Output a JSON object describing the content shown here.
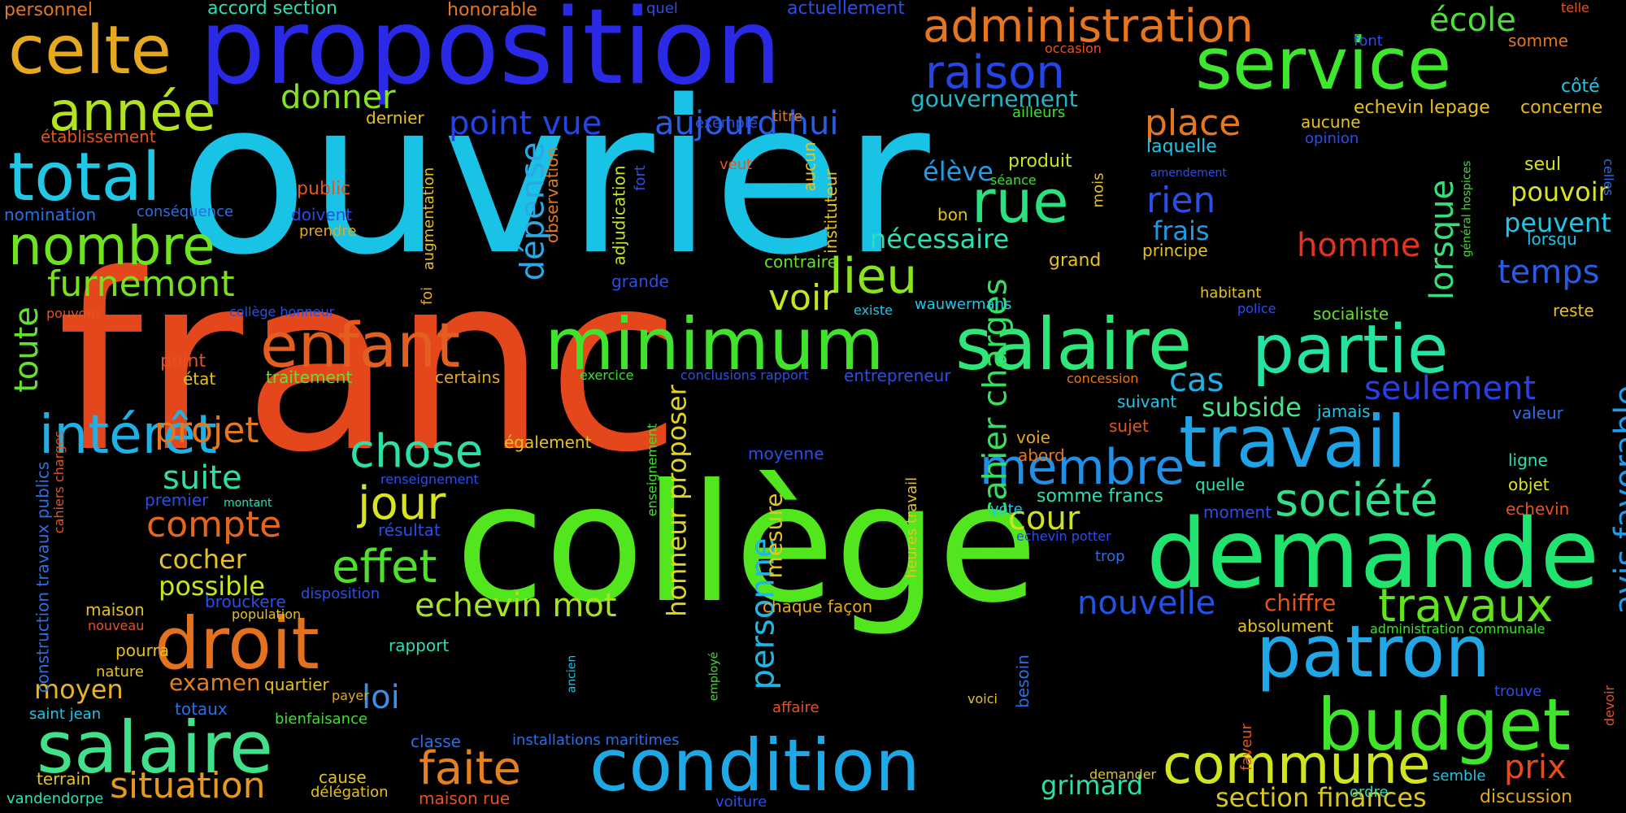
{
  "words": [
    {
      "text": "ouvrier",
      "color": "#18c3e6"
    },
    {
      "text": "franc",
      "color": "#e4471c"
    },
    {
      "text": "collège",
      "color": "#52e61f"
    },
    {
      "text": "proposition",
      "color": "#2a29e6"
    },
    {
      "text": "service",
      "color": "#3ee62d"
    },
    {
      "text": "condition",
      "color": "#1fa8e6"
    },
    {
      "text": "demande",
      "color": "#21e36f"
    },
    {
      "text": "salaire",
      "color": "#41e08a"
    },
    {
      "text": "salaire",
      "color": "#2fe67a"
    },
    {
      "text": "minimum",
      "color": "#40e22e"
    },
    {
      "text": "enfant",
      "color": "#e45f1f"
    },
    {
      "text": "partie",
      "color": "#26e3a0"
    },
    {
      "text": "travail",
      "color": "#1fa2e6"
    },
    {
      "text": "patron",
      "color": "#22a7e6"
    },
    {
      "text": "budget",
      "color": "#3ee52a"
    },
    {
      "text": "droit",
      "color": "#e5711f"
    },
    {
      "text": "celte",
      "color": "#e5a81f"
    },
    {
      "text": "total",
      "color": "#21c8e6"
    },
    {
      "text": "administration",
      "color": "#e5761f"
    },
    {
      "text": "année",
      "color": "#b2e31f"
    },
    {
      "text": "nombre",
      "color": "#6ee31f"
    },
    {
      "text": "rue",
      "color": "#2be07e"
    },
    {
      "text": "raison",
      "color": "#2546e6"
    },
    {
      "text": "commune",
      "color": "#d0e51f"
    },
    {
      "text": "société",
      "color": "#32e08b"
    },
    {
      "text": "travaux",
      "color": "#63e21f"
    },
    {
      "text": "intérêt",
      "color": "#1fb0e6"
    },
    {
      "text": "membre",
      "color": "#1f90e6"
    },
    {
      "text": "chose",
      "color": "#2ee0a8"
    },
    {
      "text": "jour",
      "color": "#d9e31f"
    },
    {
      "text": "effet",
      "color": "#4ee02b"
    },
    {
      "text": "faite",
      "color": "#e5801f"
    },
    {
      "text": "lieu",
      "color": "#8ae31f"
    },
    {
      "text": "furnemont",
      "color": "#78e01f"
    },
    {
      "text": "école",
      "color": "#4ce036"
    },
    {
      "text": "situation",
      "color": "#e59a1f"
    },
    {
      "text": "projet",
      "color": "#e5781f"
    },
    {
      "text": "aujourd hui",
      "color": "#2a5be6"
    },
    {
      "text": "point vue",
      "color": "#2444e6"
    },
    {
      "text": "donner",
      "color": "#86e31f"
    },
    {
      "text": "place",
      "color": "#e5781f"
    },
    {
      "text": "compte",
      "color": "#e5671f"
    },
    {
      "text": "suite",
      "color": "#2ee0a4"
    },
    {
      "text": "nouvelle",
      "color": "#2153e6"
    },
    {
      "text": "echevin mot",
      "color": "#a8e31f"
    },
    {
      "text": "cahier charges",
      "color": "#35e05f"
    },
    {
      "text": "personne",
      "color": "#1fb8e6"
    },
    {
      "text": "honneur proposer",
      "color": "#e0d41f"
    },
    {
      "text": "section finances",
      "color": "#d9c71f"
    },
    {
      "text": "homme",
      "color": "#e3341f"
    },
    {
      "text": "temps",
      "color": "#2a5be6"
    },
    {
      "text": "seulement",
      "color": "#2a3fe6"
    },
    {
      "text": "avis favorable",
      "color": "#1f9ae6"
    },
    {
      "text": "lorsque",
      "color": "#35e07c"
    },
    {
      "text": "dépense",
      "color": "#2aa9e6"
    },
    {
      "text": "cour",
      "color": "#d1e31f"
    },
    {
      "text": "loi",
      "color": "#3a8fe6"
    },
    {
      "text": "prix",
      "color": "#e54b1f"
    },
    {
      "text": "grimard",
      "color": "#2ee0a0"
    },
    {
      "text": "voir",
      "color": "#c8e31f"
    },
    {
      "text": "rien",
      "color": "#2a4fe6"
    },
    {
      "text": "frais",
      "color": "#1f9ae6"
    },
    {
      "text": "cas",
      "color": "#1fb0e6"
    },
    {
      "text": "subside",
      "color": "#4ae086"
    },
    {
      "text": "possible",
      "color": "#c8e31f"
    },
    {
      "text": "cocher",
      "color": "#e5c21f"
    },
    {
      "text": "examen",
      "color": "#e5801f"
    },
    {
      "text": "moyen",
      "color": "#e5b51f"
    },
    {
      "text": "toute",
      "color": "#64e02e"
    },
    {
      "text": "gouvernement",
      "color": "#1fb8c8"
    },
    {
      "text": "nécessaire",
      "color": "#2ae0b4"
    },
    {
      "text": "pouvoir",
      "color": "#d9e31f"
    },
    {
      "text": "peuvent",
      "color": "#21c5e6"
    },
    {
      "text": "élève",
      "color": "#2a9ae6"
    },
    {
      "text": "chiffre",
      "color": "#e5541f"
    },
    {
      "text": "mesure",
      "color": "#e5c21f"
    },
    {
      "text": "personnel",
      "color": "#e5781f"
    },
    {
      "text": "accord section",
      "color": "#2ae0b4"
    },
    {
      "text": "honorable",
      "color": "#e5781f"
    },
    {
      "text": "quel",
      "color": "#2a4fe6"
    },
    {
      "text": "actuellement",
      "color": "#2a4fe6"
    },
    {
      "text": "telle",
      "color": "#e5541f"
    },
    {
      "text": "occasion",
      "color": "#e5541f"
    },
    {
      "text": "somme",
      "color": "#e5781f"
    },
    {
      "text": "font",
      "color": "#2a4fe6"
    },
    {
      "text": "côté",
      "color": "#21c5e6"
    },
    {
      "text": "echevin lepage",
      "color": "#e5c21f"
    },
    {
      "text": "concerne",
      "color": "#e5b51f"
    },
    {
      "text": "aucune",
      "color": "#e5c21f"
    },
    {
      "text": "opinion",
      "color": "#2a4fe6"
    },
    {
      "text": "celles",
      "color": "#2a6fe6"
    },
    {
      "text": "général hospices",
      "color": "#3ee02e"
    },
    {
      "text": "établissement",
      "color": "#e5541f"
    },
    {
      "text": "ailleurs",
      "color": "#3ee02e"
    },
    {
      "text": "dernier",
      "color": "#e5c21f"
    },
    {
      "text": "exemple",
      "color": "#2a4fe6"
    },
    {
      "text": "titre",
      "color": "#e5781f"
    },
    {
      "text": "aucun",
      "color": "#e5c21f"
    },
    {
      "text": "instituteur",
      "color": "#e5c21f"
    },
    {
      "text": "laquelle",
      "color": "#21c5e6"
    },
    {
      "text": "produit",
      "color": "#c8e31f"
    },
    {
      "text": "amendement",
      "color": "#2a4fe6"
    },
    {
      "text": "séance",
      "color": "#3ee02e"
    },
    {
      "text": "mois",
      "color": "#e5c21f"
    },
    {
      "text": "seul",
      "color": "#d9e31f"
    },
    {
      "text": "lorsqu",
      "color": "#21c5e6"
    },
    {
      "text": "public",
      "color": "#e5541f"
    },
    {
      "text": "nomination",
      "color": "#2a6fe6"
    },
    {
      "text": "conséquence",
      "color": "#2a6fe6"
    },
    {
      "text": "doivent",
      "color": "#2a4fe6"
    },
    {
      "text": "prendre",
      "color": "#e5a81f"
    },
    {
      "text": "observation",
      "color": "#e5781f"
    },
    {
      "text": "adjudication",
      "color": "#c8e31f"
    },
    {
      "text": "fort",
      "color": "#2a4fe6"
    },
    {
      "text": "veut",
      "color": "#e5541f"
    },
    {
      "text": "augmentation",
      "color": "#e5c21f"
    },
    {
      "text": "foi",
      "color": "#e5a81f"
    },
    {
      "text": "bon",
      "color": "#e5c21f"
    },
    {
      "text": "contraire",
      "color": "#64e02e"
    },
    {
      "text": "grand",
      "color": "#e5c21f"
    },
    {
      "text": "principe",
      "color": "#e5c21f"
    },
    {
      "text": "habitant",
      "color": "#e5c21f"
    },
    {
      "text": "grande",
      "color": "#2a4fe6"
    },
    {
      "text": "pouvons",
      "color": "#e5541f"
    },
    {
      "text": "collège honneur",
      "color": "#2a4fe6"
    },
    {
      "text": "existe",
      "color": "#21c5e6"
    },
    {
      "text": "wauwermans",
      "color": "#21c5e6"
    },
    {
      "text": "police",
      "color": "#2a4fe6"
    },
    {
      "text": "socialiste",
      "color": "#64e02e"
    },
    {
      "text": "reste",
      "color": "#e5c21f"
    },
    {
      "text": "point",
      "color": "#e5541f"
    },
    {
      "text": "état",
      "color": "#e5c21f"
    },
    {
      "text": "traitement",
      "color": "#64e02e"
    },
    {
      "text": "certains",
      "color": "#e5a81f"
    },
    {
      "text": "exercice",
      "color": "#3ee02e"
    },
    {
      "text": "conclusions rapport",
      "color": "#2a4fe6"
    },
    {
      "text": "entrepreneur",
      "color": "#2a4fe6"
    },
    {
      "text": "concession",
      "color": "#e5781f"
    },
    {
      "text": "suivant",
      "color": "#21c5e6"
    },
    {
      "text": "jamais",
      "color": "#21c5e6"
    },
    {
      "text": "valeur",
      "color": "#2a6fe6"
    },
    {
      "text": "sujet",
      "color": "#e5541f"
    },
    {
      "text": "ligne",
      "color": "#2ae0b4"
    },
    {
      "text": "objet",
      "color": "#d9e31f"
    },
    {
      "text": "echevin",
      "color": "#e5541f"
    },
    {
      "text": "également",
      "color": "#e5c21f"
    },
    {
      "text": "moyenne",
      "color": "#2a4fe6"
    },
    {
      "text": "renseignement",
      "color": "#2a4fe6"
    },
    {
      "text": "enseignement",
      "color": "#3ee02e"
    },
    {
      "text": "voie",
      "color": "#e5a81f"
    },
    {
      "text": "abord",
      "color": "#e5781f"
    },
    {
      "text": "quelle",
      "color": "#2ae0b4"
    },
    {
      "text": "moment",
      "color": "#2a4fe6"
    },
    {
      "text": "somme francs",
      "color": "#2ae0b4"
    },
    {
      "text": "vote",
      "color": "#21c5e6"
    },
    {
      "text": "echevin potter",
      "color": "#2a4fe6"
    },
    {
      "text": "trop",
      "color": "#2a6fe6"
    },
    {
      "text": "cahiers charges",
      "color": "#e5541f"
    },
    {
      "text": "construction travaux publics",
      "color": "#2a6fe6"
    },
    {
      "text": "premier",
      "color": "#2a4fe6"
    },
    {
      "text": "montant",
      "color": "#2ae0b4"
    },
    {
      "text": "résultat",
      "color": "#2a4fe6"
    },
    {
      "text": "heures travail",
      "color": "#e5c21f"
    },
    {
      "text": "brouckere",
      "color": "#2a4fe6"
    },
    {
      "text": "disposition",
      "color": "#2a4fe6"
    },
    {
      "text": "population",
      "color": "#e5c21f"
    },
    {
      "text": "chaque",
      "color": "#e5a81f"
    },
    {
      "text": "façon",
      "color": "#e5a81f"
    },
    {
      "text": "absolument",
      "color": "#e5c21f"
    },
    {
      "text": "administration communale",
      "color": "#3ee02e"
    },
    {
      "text": "devoir",
      "color": "#e5541f"
    },
    {
      "text": "maison",
      "color": "#e5c21f"
    },
    {
      "text": "nouveau",
      "color": "#e5541f"
    },
    {
      "text": "pourra",
      "color": "#e5c21f"
    },
    {
      "text": "nature",
      "color": "#e5c21f"
    },
    {
      "text": "rapport",
      "color": "#2ae0b4"
    },
    {
      "text": "quartier",
      "color": "#e5c21f"
    },
    {
      "text": "payer",
      "color": "#e5a81f"
    },
    {
      "text": "totaux",
      "color": "#2a6fe6"
    },
    {
      "text": "employé",
      "color": "#3ee02e"
    },
    {
      "text": "ancien",
      "color": "#21c5e6"
    },
    {
      "text": "affaire",
      "color": "#e5541f"
    },
    {
      "text": "besoin",
      "color": "#2a6fe6"
    },
    {
      "text": "voici",
      "color": "#e5c21f"
    },
    {
      "text": "trouve",
      "color": "#2a4fe6"
    },
    {
      "text": "saint jean",
      "color": "#21c5e6"
    },
    {
      "text": "bienfaisance",
      "color": "#3ee02e"
    },
    {
      "text": "classe",
      "color": "#2a6fe6"
    },
    {
      "text": "installations maritimes",
      "color": "#2a6fe6"
    },
    {
      "text": "demander",
      "color": "#e5c21f"
    },
    {
      "text": "faveur",
      "color": "#e5541f"
    },
    {
      "text": "ordre",
      "color": "#2ae0b4"
    },
    {
      "text": "semble",
      "color": "#21c5e6"
    },
    {
      "text": "terrain",
      "color": "#e5c21f"
    },
    {
      "text": "cause",
      "color": "#e5c21f"
    },
    {
      "text": "délégation",
      "color": "#e5c21f"
    },
    {
      "text": "vandendorpe",
      "color": "#2ae0b4"
    },
    {
      "text": "maison rue",
      "color": "#e5541f"
    },
    {
      "text": "voiture",
      "color": "#2a4fe6"
    },
    {
      "text": "discussion",
      "color": "#e5a81f"
    }
  ]
}
